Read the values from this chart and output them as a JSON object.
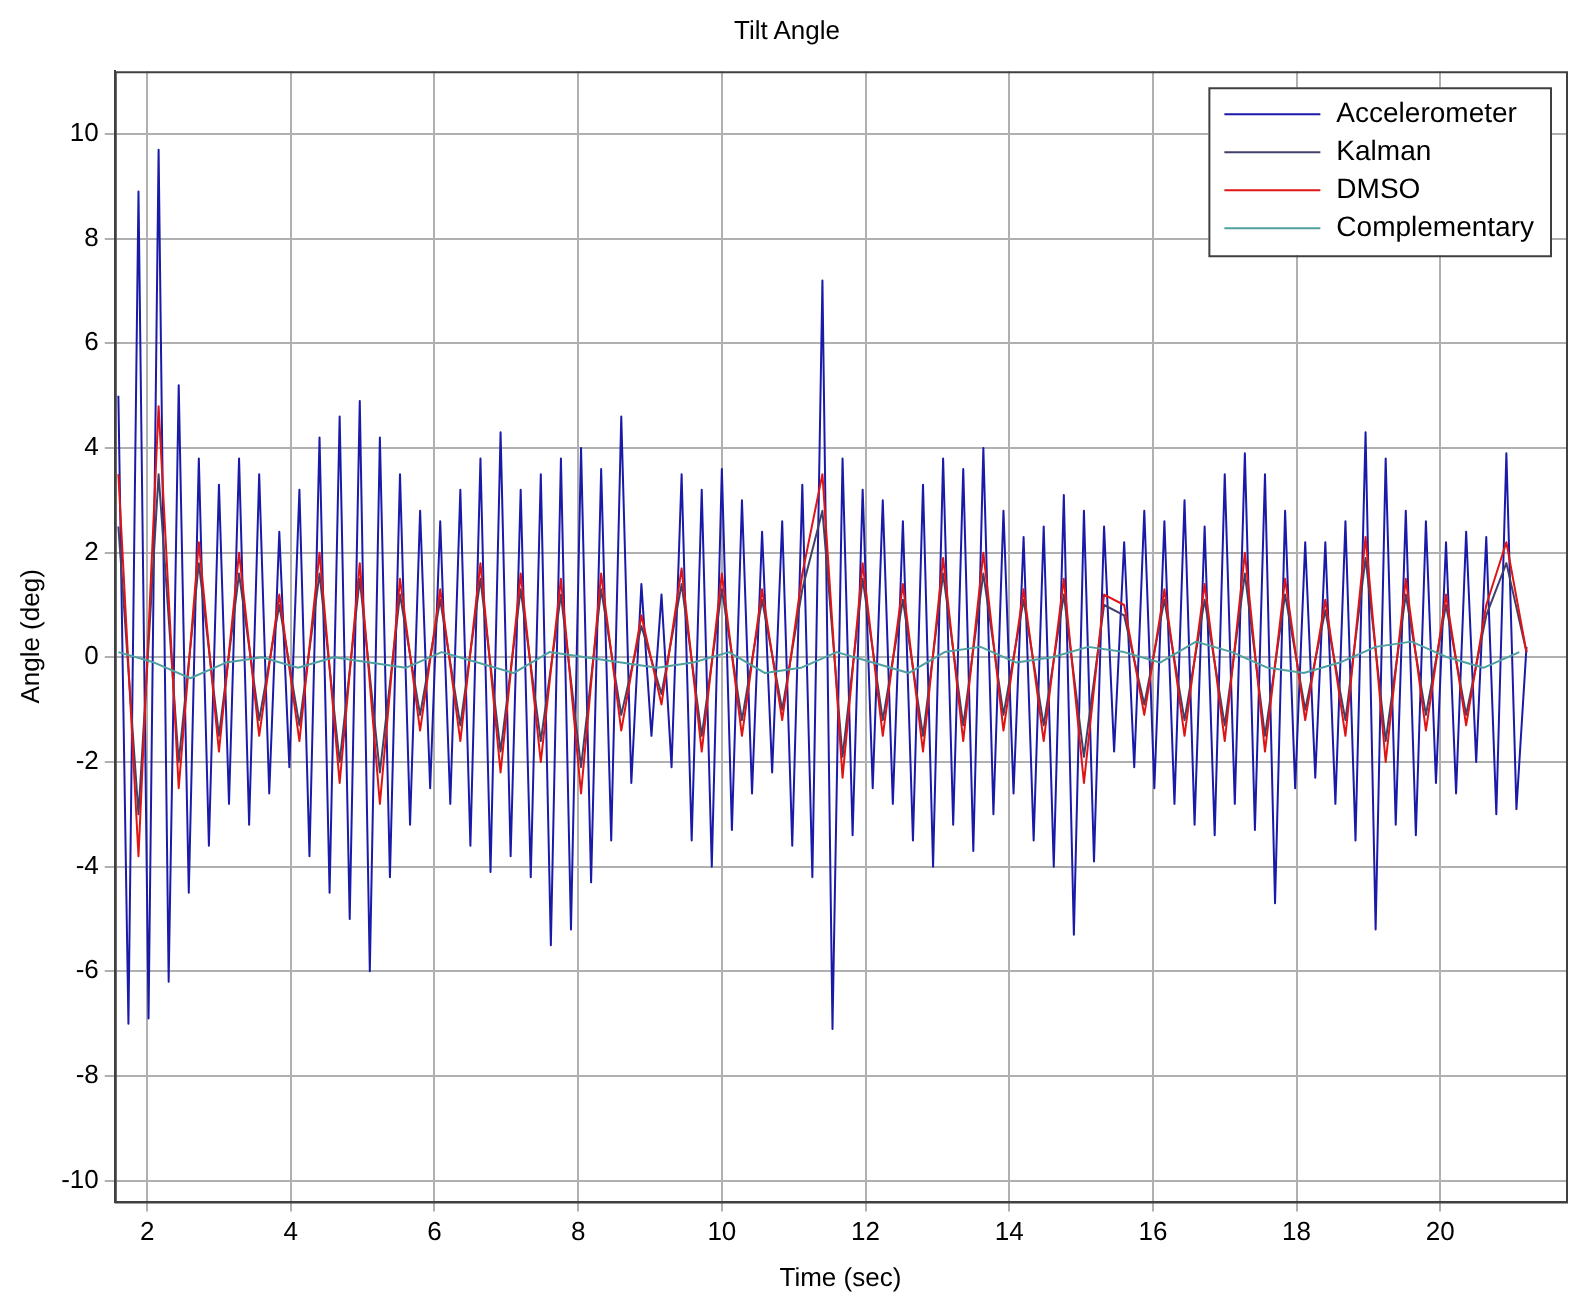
{
  "chart_data": {
    "type": "line",
    "title": "Tilt Angle",
    "xlabel": "Time (sec)",
    "ylabel": "Angle (deg)",
    "xlim": [
      1.55,
      21.75
    ],
    "ylim": [
      -10.4,
      11.2
    ],
    "xticks": [
      2,
      4,
      6,
      8,
      10,
      12,
      14,
      16,
      18,
      20
    ],
    "yticks": [
      -10,
      -8,
      -6,
      -4,
      -2,
      0,
      2,
      4,
      6,
      8,
      10
    ],
    "grid": true,
    "legend": "top right",
    "marker": "none",
    "line_style": "solid",
    "series": [
      {
        "name": "Accelerometer",
        "color": "#1a1aa8",
        "x": [
          1.6,
          1.74,
          1.88,
          2.02,
          2.16,
          2.3,
          2.44,
          2.58,
          2.72,
          2.86,
          3,
          3.14,
          3.28,
          3.42,
          3.56,
          3.7,
          3.84,
          3.98,
          4.12,
          4.26,
          4.4,
          4.54,
          4.68,
          4.82,
          4.96,
          5.1,
          5.24,
          5.38,
          5.52,
          5.66,
          5.8,
          5.94,
          6.08,
          6.22,
          6.36,
          6.5,
          6.64,
          6.78,
          6.92,
          7.06,
          7.2,
          7.34,
          7.48,
          7.62,
          7.76,
          7.9,
          8.04,
          8.18,
          8.32,
          8.46,
          8.6,
          8.74,
          8.88,
          9.02,
          9.16,
          9.3,
          9.44,
          9.58,
          9.72,
          9.86,
          10,
          10.14,
          10.28,
          10.42,
          10.56,
          10.7,
          10.84,
          10.98,
          11.12,
          11.26,
          11.4,
          11.54,
          11.68,
          11.82,
          11.96,
          12.1,
          12.24,
          12.38,
          12.52,
          12.66,
          12.8,
          12.94,
          13.08,
          13.22,
          13.36,
          13.5,
          13.64,
          13.78,
          13.92,
          14.06,
          14.2,
          14.34,
          14.48,
          14.62,
          14.76,
          14.9,
          15.04,
          15.18,
          15.32,
          15.46,
          15.6,
          15.74,
          15.88,
          16.02,
          16.16,
          16.3,
          16.44,
          16.58,
          16.72,
          16.86,
          17,
          17.14,
          17.28,
          17.42,
          17.56,
          17.7,
          17.84,
          17.98,
          18.12,
          18.26,
          18.4,
          18.54,
          18.68,
          18.82,
          18.96,
          19.1,
          19.24,
          19.38,
          19.52,
          19.66,
          19.8,
          19.94,
          20.08,
          20.22,
          20.36,
          20.5,
          20.64,
          20.78,
          20.92,
          21.06,
          21.2
        ],
        "values": [
          5,
          -7,
          8.9,
          -6.9,
          9.7,
          -6.2,
          5.2,
          -4.5,
          3.8,
          -3.6,
          3.3,
          -2.8,
          3.8,
          -3.2,
          3.5,
          -2.6,
          2.4,
          -2.1,
          3.2,
          -3.8,
          4.2,
          -4.5,
          4.6,
          -5,
          4.9,
          -6,
          4.2,
          -4.2,
          3.5,
          -3.2,
          2.8,
          -2.5,
          2.6,
          -2.8,
          3.2,
          -3.6,
          3.8,
          -4.1,
          4.3,
          -3.8,
          3.2,
          -4.2,
          3.5,
          -5.5,
          3.8,
          -5.2,
          4,
          -4.3,
          3.6,
          -3.5,
          4.6,
          -2.4,
          1.4,
          -1.5,
          1.2,
          -2.1,
          3.5,
          -3.5,
          3.2,
          -4,
          3.6,
          -3.3,
          3,
          -2.6,
          2.4,
          -2.2,
          2.6,
          -3.6,
          3.3,
          -4.2,
          7.2,
          -7.1,
          3.8,
          -3.4,
          3.2,
          -2.5,
          3,
          -2.8,
          2.6,
          -3.5,
          3.3,
          -4,
          3.8,
          -3.2,
          3.6,
          -3.7,
          4,
          -3,
          2.8,
          -2.6,
          2.3,
          -3.5,
          2.5,
          -4,
          3.1,
          -5.3,
          2.8,
          -3.9,
          2.5,
          -1.8,
          2.2,
          -2.1,
          2.8,
          -2.5,
          2.6,
          -2.8,
          3,
          -3.2,
          2.5,
          -3.4,
          3.5,
          -2.8,
          3.9,
          -3.3,
          3.5,
          -4.7,
          2.8,
          -2.5,
          2.2,
          -2.3,
          2.2,
          -2.8,
          2.6,
          -3.5,
          4.3,
          -5.2,
          3.8,
          -3.2,
          2.8,
          -3.4,
          2.6,
          -2.4,
          2.2,
          -2.6,
          2.4,
          -2,
          2.3,
          -3,
          3.9,
          -2.9,
          0.2
        ]
      },
      {
        "name": "Kalman",
        "color": "#40406a",
        "x": [
          1.6,
          1.88,
          2.16,
          2.44,
          2.72,
          3,
          3.28,
          3.56,
          3.84,
          4.12,
          4.4,
          4.68,
          4.96,
          5.24,
          5.52,
          5.8,
          6.08,
          6.36,
          6.64,
          6.92,
          7.2,
          7.48,
          7.76,
          8.04,
          8.32,
          8.6,
          8.88,
          9.16,
          9.44,
          9.72,
          10,
          10.28,
          10.56,
          10.84,
          11.12,
          11.4,
          11.68,
          11.96,
          12.24,
          12.52,
          12.8,
          13.08,
          13.36,
          13.64,
          13.92,
          14.2,
          14.48,
          14.76,
          15.04,
          15.32,
          15.6,
          15.88,
          16.16,
          16.44,
          16.72,
          17,
          17.28,
          17.56,
          17.84,
          18.12,
          18.4,
          18.68,
          18.96,
          19.24,
          19.52,
          19.8,
          20.08,
          20.36,
          20.64,
          20.92,
          21.2
        ],
        "values": [
          2.5,
          -3,
          3.5,
          -2,
          1.8,
          -1.5,
          1.6,
          -1.2,
          1,
          -1.3,
          1.6,
          -2,
          1.5,
          -2.2,
          1.2,
          -1.1,
          1.1,
          -1.3,
          1.5,
          -1.8,
          1.3,
          -1.6,
          1.2,
          -2.1,
          1.3,
          -1.1,
          0.6,
          -0.7,
          1.4,
          -1.5,
          1.3,
          -1.2,
          1.1,
          -1,
          1.3,
          2.8,
          -1.9,
          1.5,
          -1.2,
          1.1,
          -1.5,
          1.6,
          -1.3,
          1.6,
          -1.1,
          1.1,
          -1.3,
          1.2,
          -1.9,
          1,
          0.8,
          -0.9,
          1.1,
          -1.2,
          1.1,
          -1.3,
          1.6,
          -1.5,
          1.2,
          -1,
          0.9,
          -1.2,
          1.9,
          -1.6,
          1.2,
          -1.1,
          1,
          -1.1,
          0.8,
          1.8,
          0.1
        ]
      },
      {
        "name": "DMSO",
        "color": "#e01414",
        "x": [
          1.6,
          1.88,
          2.16,
          2.44,
          2.72,
          3,
          3.28,
          3.56,
          3.84,
          4.12,
          4.4,
          4.68,
          4.96,
          5.24,
          5.52,
          5.8,
          6.08,
          6.36,
          6.64,
          6.92,
          7.2,
          7.48,
          7.76,
          8.04,
          8.32,
          8.6,
          8.88,
          9.16,
          9.44,
          9.72,
          10,
          10.28,
          10.56,
          10.84,
          11.12,
          11.4,
          11.68,
          11.96,
          12.24,
          12.52,
          12.8,
          13.08,
          13.36,
          13.64,
          13.92,
          14.2,
          14.48,
          14.76,
          15.04,
          15.32,
          15.6,
          15.88,
          16.16,
          16.44,
          16.72,
          17,
          17.28,
          17.56,
          17.84,
          18.12,
          18.4,
          18.68,
          18.96,
          19.24,
          19.52,
          19.8,
          20.08,
          20.36,
          20.64,
          20.92,
          21.2
        ],
        "values": [
          3.5,
          -3.8,
          4.8,
          -2.5,
          2.2,
          -1.8,
          2,
          -1.5,
          1.2,
          -1.6,
          2,
          -2.4,
          1.8,
          -2.8,
          1.5,
          -1.4,
          1.3,
          -1.6,
          1.8,
          -2.2,
          1.6,
          -2,
          1.5,
          -2.6,
          1.6,
          -1.4,
          0.8,
          -0.9,
          1.7,
          -1.8,
          1.6,
          -1.5,
          1.3,
          -1.2,
          1.6,
          3.5,
          -2.3,
          1.8,
          -1.5,
          1.4,
          -1.8,
          1.9,
          -1.6,
          2,
          -1.4,
          1.3,
          -1.6,
          1.5,
          -2.4,
          1.2,
          1,
          -1.1,
          1.3,
          -1.5,
          1.4,
          -1.6,
          2,
          -1.8,
          1.5,
          -1.2,
          1.1,
          -1.5,
          2.3,
          -2,
          1.5,
          -1.4,
          1.2,
          -1.3,
          1,
          2.2,
          0.1
        ]
      },
      {
        "name": "Complementary",
        "color": "#4fa0a0",
        "x": [
          1.6,
          2.1,
          2.6,
          3.1,
          3.6,
          4.1,
          4.6,
          5.1,
          5.6,
          6.1,
          6.6,
          7.1,
          7.6,
          8.1,
          8.6,
          9.1,
          9.6,
          10.1,
          10.6,
          11.1,
          11.6,
          12.1,
          12.6,
          13.1,
          13.6,
          14.1,
          14.6,
          15.1,
          15.6,
          16.1,
          16.6,
          17.1,
          17.6,
          18.1,
          18.6,
          19.1,
          19.6,
          20.1,
          20.6,
          21.1
        ],
        "values": [
          0.1,
          -0.1,
          -0.4,
          -0.1,
          0,
          -0.2,
          0,
          -0.1,
          -0.2,
          0.1,
          -0.1,
          -0.3,
          0.1,
          0,
          -0.1,
          -0.2,
          -0.1,
          0.1,
          -0.3,
          -0.2,
          0.1,
          -0.1,
          -0.3,
          0.1,
          0.2,
          -0.1,
          0,
          0.2,
          0.1,
          -0.1,
          0.3,
          0.1,
          -0.2,
          -0.3,
          -0.1,
          0.2,
          0.3,
          0,
          -0.2,
          0.1
        ]
      }
    ]
  }
}
